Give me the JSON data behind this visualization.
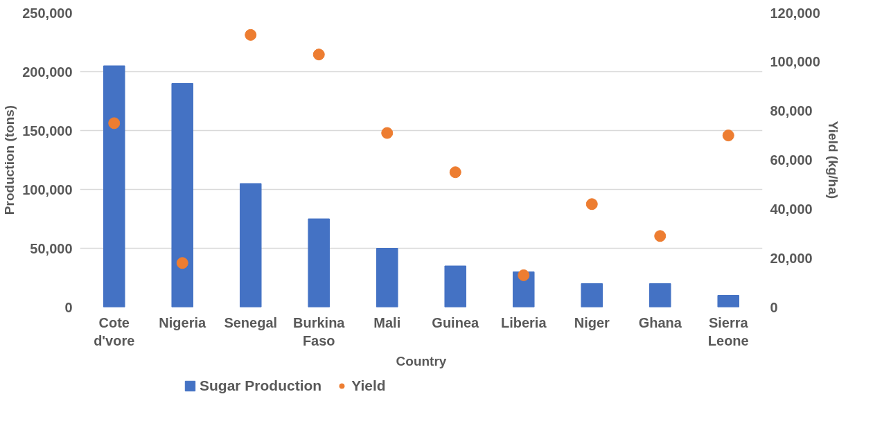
{
  "chart_data": {
    "type": "bar",
    "xlabel": "Country",
    "ylabel": "Production (tons)",
    "y2label": "Yield (kg/ha)",
    "categories": [
      "Cote d'vore",
      "Nigeria",
      "Senegal",
      "Burkina Faso",
      "Mali",
      "Guinea",
      "Liberia",
      "Niger",
      "Ghana",
      "Sierra Leone"
    ],
    "series": [
      {
        "name": "Sugar Production",
        "color": "#4472c4",
        "values": [
          205000,
          190000,
          105000,
          75000,
          50000,
          35000,
          30000,
          20000,
          20000,
          10000
        ]
      },
      {
        "name": "Yield",
        "type": "scatter",
        "axis": "y2",
        "color": "#ed7d31",
        "values": [
          75000,
          18000,
          111000,
          103000,
          71000,
          55000,
          13000,
          42000,
          29000,
          70000
        ]
      }
    ],
    "ylim": [
      0,
      250000
    ],
    "yticks": [
      {
        "value": 0,
        "label": "0"
      },
      {
        "value": 50000,
        "label": "50,000"
      },
      {
        "value": 100000,
        "label": "100,000"
      },
      {
        "value": 150000,
        "label": "150,000"
      },
      {
        "value": 200000,
        "label": "200,000"
      },
      {
        "value": 250000,
        "label": "250,000"
      }
    ],
    "y2lim": [
      0,
      120000
    ],
    "y2ticks": [
      {
        "value": 0,
        "label": "0"
      },
      {
        "value": 20000,
        "label": "20,000"
      },
      {
        "value": 40000,
        "label": "40,000"
      },
      {
        "value": 60000,
        "label": "60,000"
      },
      {
        "value": 80000,
        "label": "80,000"
      },
      {
        "value": 100000,
        "label": "100,000"
      },
      {
        "value": 120000,
        "label": "120,000"
      }
    ],
    "grid": "y",
    "legend": "bottom left",
    "marker": "circle"
  }
}
